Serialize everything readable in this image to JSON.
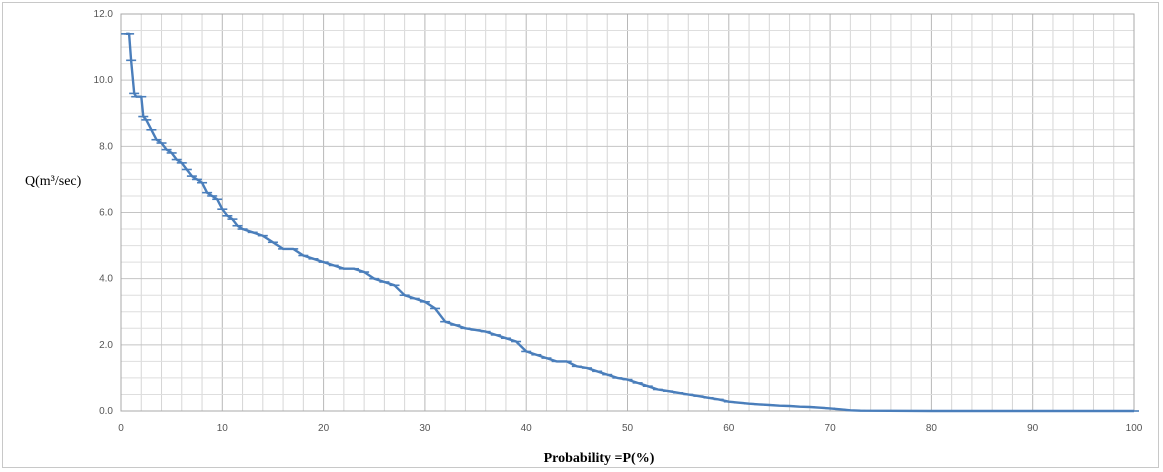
{
  "chart_data": {
    "type": "line",
    "title": "",
    "xlabel": "Probability =P(%)",
    "ylabel": "Q(m³/sec)",
    "xlim": [
      0,
      100
    ],
    "ylim": [
      0,
      12
    ],
    "x_ticks": [
      0,
      10,
      20,
      30,
      40,
      50,
      60,
      70,
      80,
      90,
      100
    ],
    "x_tick_labels": [
      "0",
      "10",
      "20",
      "30",
      "40",
      "50",
      "60",
      "70",
      "80",
      "90",
      "100"
    ],
    "y_ticks": [
      0,
      2,
      4,
      6,
      8,
      10,
      12
    ],
    "y_tick_labels": [
      "0.0",
      "2.0",
      "4.0",
      "6.0",
      "8.0",
      "10.0",
      "12.0"
    ],
    "grid": true,
    "color": "#4a7ebb",
    "series": [
      {
        "x": [
          0.5,
          0.8,
          1.0,
          1.3,
          1.5,
          2.0,
          2.2,
          2.5,
          3.0,
          3.5,
          4.0,
          4.5,
          5.0,
          5.5,
          6.0,
          6.5,
          7.0,
          7.5,
          8.0,
          8.5,
          9.0,
          9.5,
          10.0,
          10.5,
          11.0,
          11.5,
          12.0,
          13.0,
          14.0,
          15.0,
          16.0,
          17.0,
          18.0,
          19.0,
          20.0,
          21.0,
          22.0,
          23.0,
          24.0,
          25.0,
          26.0,
          27.0,
          28.0,
          29.0,
          30.0,
          31.0,
          32.0,
          33.0,
          34.0,
          35.0,
          36.0,
          37.0,
          38.0,
          39.0,
          40.0,
          41.0,
          42.0,
          43.0,
          44.0,
          45.0,
          46.0,
          47.0,
          48.0,
          49.0,
          50.0,
          51.0,
          52.0,
          53.0,
          54.0,
          55.0,
          56.0,
          57.0,
          58.0,
          59.0,
          60.0,
          61.0,
          62.0,
          63.0,
          64.0,
          65.0,
          66.0,
          67.0,
          68.0,
          69.0,
          70.0,
          71.0,
          72.0,
          73.0,
          80.0,
          90.0,
          100.0
        ],
        "y": [
          11.4,
          11.4,
          10.6,
          9.6,
          9.5,
          9.5,
          8.9,
          8.8,
          8.5,
          8.2,
          8.1,
          7.9,
          7.8,
          7.6,
          7.5,
          7.3,
          7.1,
          7.0,
          6.9,
          6.6,
          6.5,
          6.4,
          6.1,
          5.9,
          5.8,
          5.6,
          5.5,
          5.4,
          5.3,
          5.1,
          4.9,
          4.9,
          4.7,
          4.6,
          4.5,
          4.4,
          4.3,
          4.3,
          4.2,
          4.0,
          3.9,
          3.8,
          3.5,
          3.4,
          3.3,
          3.1,
          2.7,
          2.6,
          2.5,
          2.45,
          2.4,
          2.3,
          2.2,
          2.1,
          1.8,
          1.7,
          1.6,
          1.5,
          1.5,
          1.35,
          1.3,
          1.2,
          1.1,
          1.0,
          0.95,
          0.85,
          0.75,
          0.65,
          0.6,
          0.55,
          0.5,
          0.45,
          0.4,
          0.35,
          0.28,
          0.25,
          0.22,
          0.2,
          0.18,
          0.16,
          0.15,
          0.13,
          0.12,
          0.1,
          0.08,
          0.05,
          0.02,
          0.01,
          0.0,
          0.0,
          0.0
        ]
      }
    ]
  }
}
